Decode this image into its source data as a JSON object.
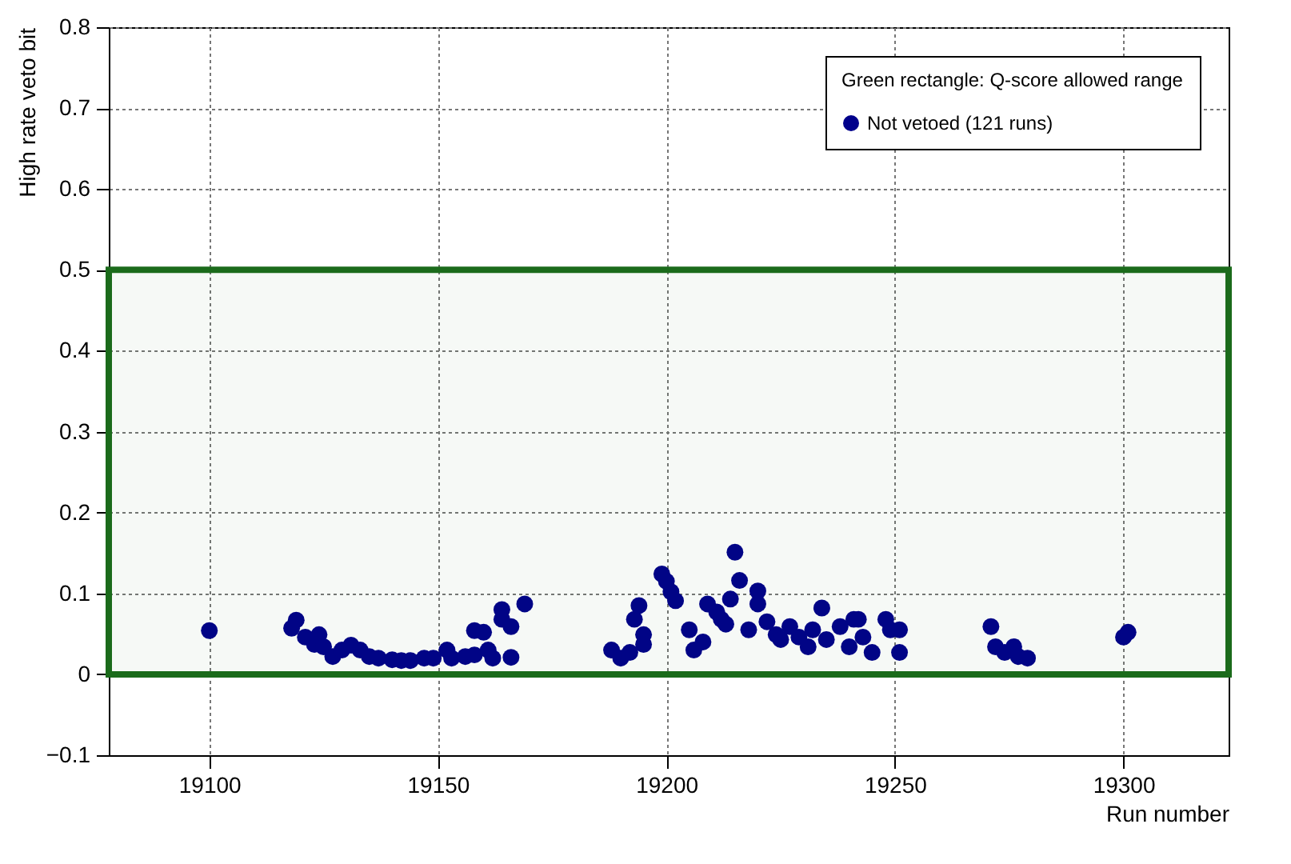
{
  "chart_data": {
    "type": "scatter",
    "xlabel": "Run number",
    "ylabel": "High rate veto bit",
    "legend_title": "Green rectangle: Q-score allowed range",
    "x": [
      19100,
      19119,
      19118,
      19121,
      19124,
      19123,
      19125,
      19127,
      19129,
      19131,
      19133,
      19135,
      19137,
      19140,
      19142,
      19144,
      19147,
      19149,
      19152,
      19153,
      19156,
      19158,
      19158,
      19160,
      19161,
      19164,
      19164,
      19162,
      19166,
      19166,
      19169,
      19188,
      19190,
      19192,
      19193,
      19194,
      19195,
      19195,
      19199,
      19200,
      19201,
      19202,
      19205,
      19206,
      19208,
      19209,
      19211,
      19212,
      19214,
      19213,
      19215,
      19216,
      19218,
      19220,
      19220,
      19222,
      19224,
      19225,
      19227,
      19229,
      19231,
      19232,
      19234,
      19235,
      19238,
      19240,
      19241,
      19243,
      19242,
      19245,
      19248,
      19249,
      19251,
      19251,
      19271,
      19272,
      19274,
      19276,
      19277,
      19279,
      19300,
      19301
    ],
    "series": [
      {
        "name": "Not vetoed (121 runs)",
        "color": "#00008b",
        "values": [
          0.054,
          0.067,
          0.057,
          0.046,
          0.049,
          0.037,
          0.034,
          0.022,
          0.03,
          0.036,
          0.03,
          0.022,
          0.02,
          0.018,
          0.017,
          0.017,
          0.02,
          0.02,
          0.03,
          0.02,
          0.022,
          0.054,
          0.024,
          0.052,
          0.03,
          0.08,
          0.068,
          0.02,
          0.059,
          0.021,
          0.087,
          0.03,
          0.02,
          0.027,
          0.068,
          0.085,
          0.049,
          0.037,
          0.124,
          0.115,
          0.102,
          0.091,
          0.055,
          0.03,
          0.04,
          0.087,
          0.077,
          0.068,
          0.093,
          0.062,
          0.151,
          0.116,
          0.055,
          0.103,
          0.087,
          0.065,
          0.049,
          0.043,
          0.059,
          0.046,
          0.034,
          0.055,
          0.082,
          0.043,
          0.059,
          0.034,
          0.068,
          0.046,
          0.068,
          0.027,
          0.068,
          0.055,
          0.055,
          0.027,
          0.059,
          0.034,
          0.027,
          0.034,
          0.022,
          0.02,
          0.046,
          0.052
        ]
      }
    ],
    "xlim": [
      19078,
      19323
    ],
    "xticks": [
      19100,
      19150,
      19200,
      19250,
      19300
    ],
    "ylim": [
      -0.1,
      0.8
    ],
    "yticks": [
      -0.1,
      0,
      0.1,
      0.2,
      0.3,
      0.4,
      0.5,
      0.6,
      0.7,
      0.8
    ],
    "bands": [
      {
        "axis": "y",
        "from": 0,
        "to": 0.5,
        "color": "#1b6b1b"
      }
    ],
    "grid": true,
    "legend": "top right",
    "marker": "circle"
  }
}
